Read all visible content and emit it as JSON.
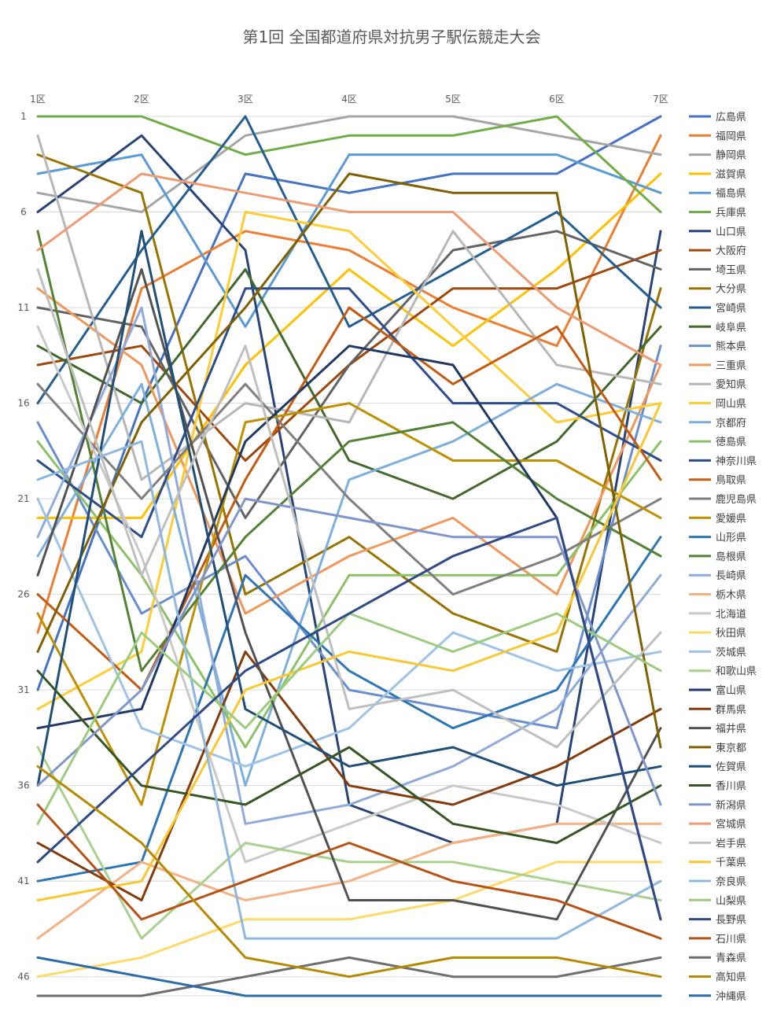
{
  "chart_data": {
    "type": "line",
    "title": "第1回 全国都道府県対抗男子駅伝競走大会",
    "categories": [
      "1区",
      "2区",
      "3区",
      "4区",
      "5区",
      "6区",
      "7区"
    ],
    "y_ticks": [
      "1",
      "6",
      "11",
      "16",
      "21",
      "26",
      "31",
      "36",
      "41",
      "46"
    ],
    "ylim": [
      1,
      47
    ],
    "y_reversed": true,
    "grid": true,
    "legend_position": "right",
    "series": [
      {
        "name": "広島県",
        "color": "#4472C4",
        "values": [
          31,
          16,
          4,
          5,
          4,
          4,
          1
        ]
      },
      {
        "name": "福岡県",
        "color": "#ED7D31",
        "values": [
          28,
          10,
          7,
          8,
          11,
          13,
          2
        ]
      },
      {
        "name": "静岡県",
        "color": "#A5A5A5",
        "values": [
          5,
          6,
          2,
          1,
          1,
          2,
          3
        ]
      },
      {
        "name": "滋賀県",
        "color": "#FFC000",
        "values": [
          22,
          22,
          14,
          9,
          13,
          9,
          4
        ]
      },
      {
        "name": "福島県",
        "color": "#5B9BD5",
        "values": [
          4,
          3,
          12,
          3,
          3,
          3,
          5
        ]
      },
      {
        "name": "兵庫県",
        "color": "#70AD47",
        "values": [
          1,
          1,
          3,
          2,
          2,
          1,
          6
        ]
      },
      {
        "name": "山口県",
        "color": "#264478",
        "values": [
          6,
          2,
          8,
          37,
          39,
          38,
          7
        ]
      },
      {
        "name": "大阪府",
        "color": "#9E480E",
        "values": [
          14,
          13,
          19,
          14,
          10,
          10,
          8
        ]
      },
      {
        "name": "埼玉県",
        "color": "#636363",
        "values": [
          11,
          12,
          22,
          14,
          8,
          7,
          9
        ]
      },
      {
        "name": "大分県",
        "color": "#997300",
        "values": [
          3,
          5,
          26,
          23,
          27,
          29,
          10
        ]
      },
      {
        "name": "宮崎県",
        "color": "#255E91",
        "values": [
          16,
          8,
          1,
          12,
          9,
          6,
          11
        ]
      },
      {
        "name": "岐阜県",
        "color": "#43682B",
        "values": [
          13,
          16,
          9,
          19,
          21,
          18,
          12
        ]
      },
      {
        "name": "熊本県",
        "color": "#698ED0",
        "values": [
          17,
          27,
          24,
          31,
          32,
          33,
          13
        ]
      },
      {
        "name": "三重県",
        "color": "#F1975A",
        "values": [
          10,
          14,
          27,
          24,
          22,
          26,
          14
        ]
      },
      {
        "name": "愛知県",
        "color": "#B7B7B7",
        "values": [
          2,
          20,
          16,
          17,
          7,
          14,
          15
        ]
      },
      {
        "name": "岡山県",
        "color": "#FFCD33",
        "values": [
          32,
          29,
          6,
          7,
          12,
          17,
          16
        ]
      },
      {
        "name": "京都府",
        "color": "#7CAFDD",
        "values": [
          24,
          15,
          36,
          20,
          18,
          15,
          17
        ]
      },
      {
        "name": "徳島県",
        "color": "#8CC168",
        "values": [
          18,
          25,
          34,
          25,
          25,
          25,
          18
        ]
      },
      {
        "name": "神奈川県",
        "color": "#2E4D8C",
        "values": [
          19,
          23,
          10,
          10,
          16,
          16,
          19
        ]
      },
      {
        "name": "鳥取県",
        "color": "#C55A11",
        "values": [
          26,
          31,
          20,
          11,
          15,
          12,
          20
        ]
      },
      {
        "name": "鹿児島県",
        "color": "#7F7F7F",
        "values": [
          15,
          21,
          15,
          21,
          26,
          24,
          21
        ]
      },
      {
        "name": "愛媛県",
        "color": "#BF9000",
        "values": [
          27,
          37,
          17,
          16,
          19,
          19,
          22
        ]
      },
      {
        "name": "山形県",
        "color": "#2E75B6",
        "values": [
          41,
          40,
          25,
          30,
          33,
          31,
          23
        ]
      },
      {
        "name": "島根県",
        "color": "#548235",
        "values": [
          7,
          30,
          23,
          18,
          17,
          21,
          24
        ]
      },
      {
        "name": "長崎県",
        "color": "#8FAADC",
        "values": [
          23,
          11,
          38,
          37,
          35,
          32,
          25
        ]
      },
      {
        "name": "栃木県",
        "color": "#F4B183",
        "values": [
          44,
          40,
          42,
          41,
          39,
          38,
          38
        ]
      },
      {
        "name": "北海道",
        "color": "#C9C9C9",
        "values": [
          12,
          24,
          40,
          38,
          36,
          37,
          39
        ]
      },
      {
        "name": "秋田県",
        "color": "#FFD966",
        "values": [
          46,
          45,
          43,
          43,
          42,
          40,
          40
        ]
      },
      {
        "name": "茨城県",
        "color": "#9DC3E6",
        "values": [
          21,
          33,
          35,
          33,
          28,
          30,
          29
        ]
      },
      {
        "name": "和歌山県",
        "color": "#A9D18E",
        "values": [
          34,
          44,
          39,
          40,
          40,
          41,
          42
        ]
      },
      {
        "name": "富山県",
        "color": "#1F3864",
        "values": [
          33,
          32,
          18,
          13,
          14,
          22,
          43
        ]
      },
      {
        "name": "群馬県",
        "color": "#843C0C",
        "values": [
          39,
          42,
          29,
          36,
          37,
          35,
          32
        ]
      },
      {
        "name": "福井県",
        "color": "#525252",
        "values": [
          25,
          9,
          28,
          42,
          42,
          43,
          33
        ]
      },
      {
        "name": "東京都",
        "color": "#806000",
        "values": [
          29,
          17,
          11,
          4,
          5,
          5,
          34
        ]
      },
      {
        "name": "佐賀県",
        "color": "#1F4E79",
        "values": [
          36,
          7,
          32,
          35,
          34,
          36,
          35
        ]
      },
      {
        "name": "香川県",
        "color": "#375623",
        "values": [
          30,
          36,
          37,
          34,
          38,
          39,
          36
        ]
      },
      {
        "name": "新潟県",
        "color": "#7F96CC",
        "values": [
          36,
          31,
          21,
          22,
          23,
          23,
          37
        ]
      },
      {
        "name": "宮城県",
        "color": "#EE9A73",
        "values": [
          8,
          4,
          5,
          6,
          6,
          11,
          14
        ]
      },
      {
        "name": "岩手県",
        "color": "#BFBFBF",
        "values": [
          9,
          25,
          13,
          32,
          31,
          34,
          28
        ]
      },
      {
        "name": "千葉県",
        "color": "#F9C72E",
        "values": [
          42,
          41,
          31,
          29,
          30,
          28,
          16
        ]
      },
      {
        "name": "奈良県",
        "color": "#8EB8E0",
        "values": [
          20,
          18,
          44,
          44,
          44,
          44,
          41
        ]
      },
      {
        "name": "山梨県",
        "color": "#9BCC7E",
        "values": [
          38,
          28,
          33,
          27,
          29,
          27,
          30
        ]
      },
      {
        "name": "長野県",
        "color": "#2F4A86",
        "values": [
          40,
          35,
          30,
          27,
          24,
          22,
          43
        ]
      },
      {
        "name": "石川県",
        "color": "#B85116",
        "values": [
          37,
          43,
          41,
          39,
          41,
          42,
          44
        ]
      },
      {
        "name": "青森県",
        "color": "#6E6E6E",
        "values": [
          47,
          47,
          46,
          45,
          46,
          46,
          45
        ]
      },
      {
        "name": "高知県",
        "color": "#B68A00",
        "values": [
          35,
          39,
          45,
          46,
          45,
          45,
          46
        ]
      },
      {
        "name": "沖縄県",
        "color": "#2A6BA8",
        "values": [
          45,
          46,
          47,
          47,
          47,
          47,
          47
        ]
      }
    ]
  }
}
